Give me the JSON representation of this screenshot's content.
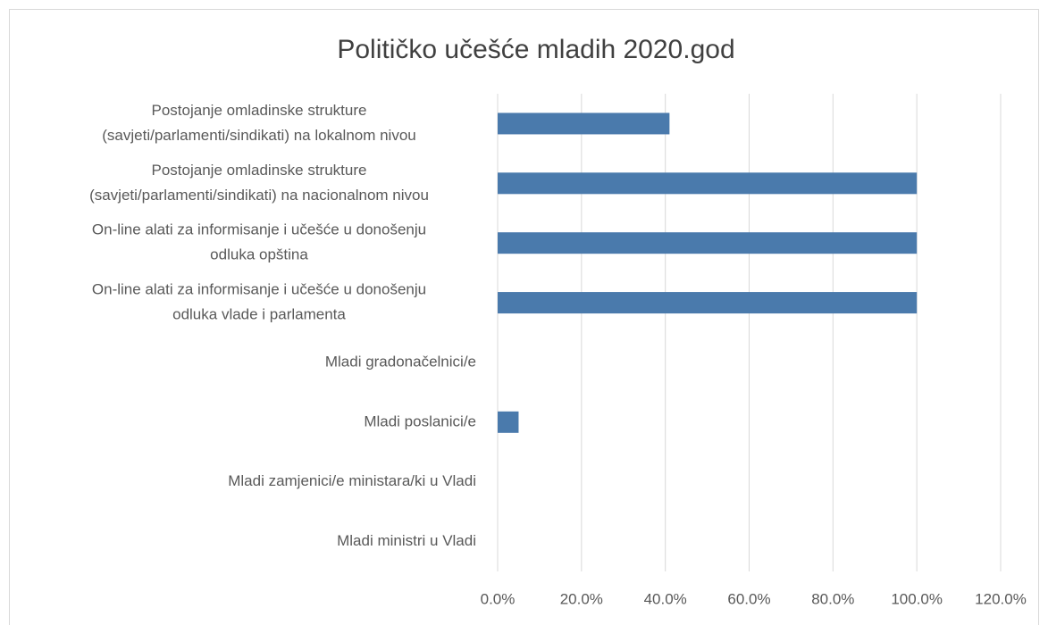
{
  "chart_data": {
    "type": "bar",
    "orientation": "horizontal",
    "title": "Političko učešće mladih 2020.god",
    "categories": [
      [
        "Postojanje omladinske strukture",
        "(savjeti/parlamenti/sindikati) na lokalnom nivou"
      ],
      [
        "Postojanje omladinske strukture",
        "(savjeti/parlamenti/sindikati) na nacionalnom nivou"
      ],
      [
        "On-line alati za informisanje i učešće u donošenju",
        "odluka opština"
      ],
      [
        "On-line alati za informisanje i učešće u donošenju",
        "odluka vlade i parlamenta"
      ],
      [
        "Mladi gradonačelnici/e"
      ],
      [
        "Mladi poslanici/e"
      ],
      [
        "Mladi zamjenici/e ministara/ki u Vladi"
      ],
      [
        "Mladi ministri u Vladi"
      ]
    ],
    "values": [
      41,
      100,
      100,
      100,
      0,
      5,
      0,
      0
    ],
    "color": "#4a7aac",
    "xlim": [
      0,
      120
    ],
    "xticks": [
      {
        "value": 0,
        "label": "0.0%"
      },
      {
        "value": 20,
        "label": "20.0%"
      },
      {
        "value": 40,
        "label": "40.0%"
      },
      {
        "value": 60,
        "label": "60.0%"
      },
      {
        "value": 80,
        "label": "80.0%"
      },
      {
        "value": 100,
        "label": "100.0%"
      },
      {
        "value": 120,
        "label": "120.0%"
      }
    ],
    "grid": true
  }
}
